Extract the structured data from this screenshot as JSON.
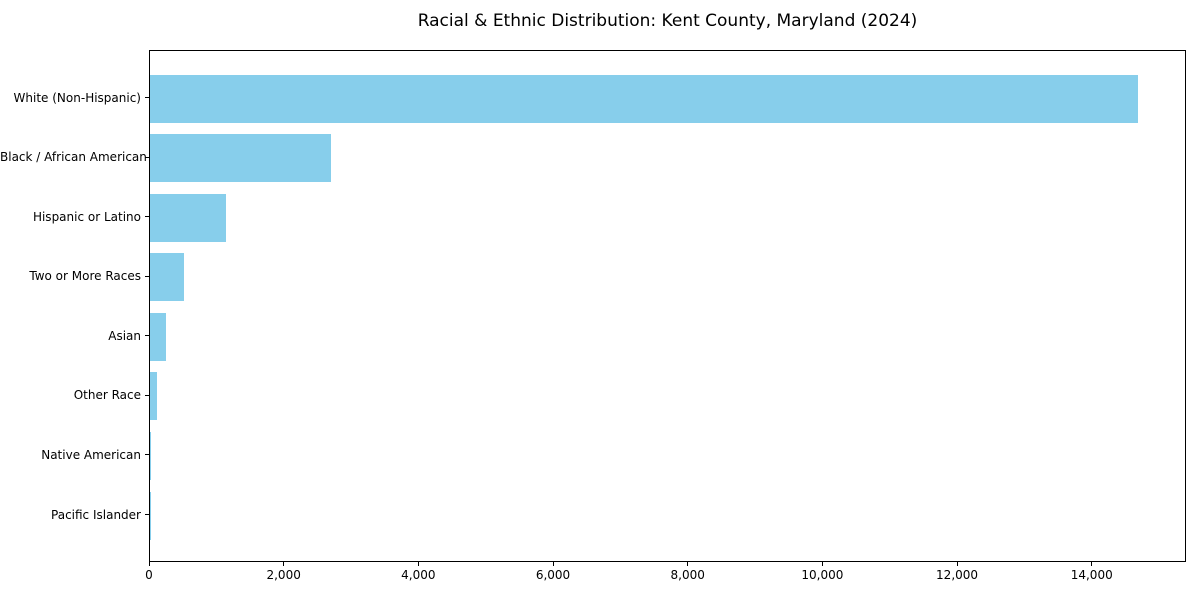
{
  "chart_data": {
    "type": "bar",
    "orientation": "horizontal",
    "title": "Racial & Ethnic Distribution: Kent County, Maryland (2024)",
    "categories": [
      "White (Non-Hispanic)",
      "Black / African American",
      "Hispanic or Latino",
      "Two or More Races",
      "Asian",
      "Other Race",
      "Native American",
      "Pacific Islander"
    ],
    "values": [
      14670,
      2690,
      1130,
      500,
      240,
      100,
      15,
      5
    ],
    "bar_color": "#87CEEB",
    "axis_color": "#000000",
    "background_color": "#ffffff",
    "xlim": [
      0,
      15400
    ],
    "xticks": [
      0,
      2000,
      4000,
      6000,
      8000,
      10000,
      12000,
      14000
    ],
    "xtick_labels": [
      "0",
      "2,000",
      "4,000",
      "6,000",
      "8,000",
      "10,000",
      "12,000",
      "14,000"
    ],
    "xlabel": "",
    "ylabel": "",
    "grid": false,
    "legend": null,
    "value_labels_shown": false
  }
}
